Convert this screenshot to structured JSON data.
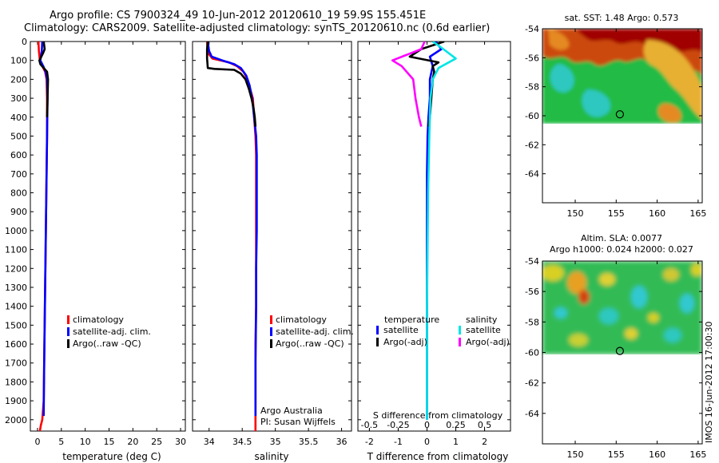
{
  "titles": {
    "line1": "Argo profile: CS 7900324_49 10-Jun-2012 20120610_19 59.9S 155.451E",
    "line2": "Climatology: CARS2009. Satellite-adjusted climatology: synTS_20120610.nc (0.6d earlier)"
  },
  "side_label": "IMOS 16-Jun-2012 17:00:30",
  "credit": {
    "line1": "Argo Australia",
    "line2": "PI: Susan Wijffels"
  },
  "colors": {
    "climatology": "#ff0000",
    "satellite": "#0000ff",
    "argo": "#000000",
    "sal_satellite": "#00e5e5",
    "sal_argo": "#ff00ff",
    "warm": "#aa1100",
    "cool": "#22bb44"
  },
  "chart_data": [
    {
      "id": "temperature",
      "type": "line",
      "xlabel": "temperature (deg C)",
      "ylabel": "",
      "xlim": [
        -1.5,
        31
      ],
      "ylim": [
        2060,
        0
      ],
      "xticks": [
        0,
        5,
        10,
        15,
        20,
        25,
        30
      ],
      "xtick_labels": [
        "0",
        "5",
        "10",
        "15",
        "20",
        "25",
        "30"
      ],
      "yticks": [
        0,
        100,
        200,
        300,
        400,
        500,
        600,
        700,
        800,
        900,
        1000,
        1100,
        1200,
        1300,
        1400,
        1500,
        1600,
        1700,
        1800,
        1900,
        2000
      ],
      "ytick_labels": [
        "0",
        "100",
        "200",
        "300",
        "400",
        "500",
        "600",
        "700",
        "800",
        "900",
        "1000",
        "1100",
        "1200",
        "1300",
        "1400",
        "1500",
        "1600",
        "1700",
        "1800",
        "1900",
        "2000"
      ],
      "legend": [
        "climatology",
        "satellite-adj. clim.",
        "Argo(..raw -QC)"
      ],
      "series": [
        {
          "name": "climatology",
          "color": "#ff0000",
          "x": [
            0.2,
            0.3,
            0.5,
            1.0,
            1.6,
            1.9,
            2.0,
            2.0,
            1.9,
            1.8,
            1.7,
            1.6,
            1.5,
            1.4,
            1.3,
            1.0,
            0.7,
            0.5
          ],
          "y": [
            0,
            50,
            100,
            130,
            160,
            200,
            300,
            500,
            700,
            900,
            1100,
            1300,
            1500,
            1700,
            1900,
            2000,
            2030,
            2060
          ]
        },
        {
          "name": "satellite-adj. clim.",
          "color": "#0000ff",
          "x": [
            1.0,
            0.9,
            0.6,
            1.2,
            1.7,
            2.0,
            2.1,
            2.0,
            1.9,
            1.8,
            1.7,
            1.6,
            1.5,
            1.4,
            1.3
          ],
          "y": [
            0,
            50,
            100,
            130,
            160,
            200,
            300,
            500,
            700,
            900,
            1100,
            1300,
            1500,
            1700,
            1980
          ]
        },
        {
          "name": "Argo(..raw -QC)",
          "color": "#000000",
          "x": [
            1.3,
            1.5,
            1.2,
            0.8,
            0.4,
            0.6,
            1.3,
            2.0,
            2.2,
            2.1,
            2.0
          ],
          "y": [
            0,
            40,
            60,
            80,
            100,
            120,
            140,
            160,
            200,
            300,
            400
          ]
        }
      ]
    },
    {
      "id": "salinity",
      "type": "line",
      "xlabel": "salinity",
      "ylabel": "",
      "xlim": [
        33.75,
        36.15
      ],
      "ylim": [
        2060,
        0
      ],
      "xticks": [
        34,
        34.5,
        35,
        35.5,
        36
      ],
      "xtick_labels": [
        "34",
        "34.5",
        "35",
        "35.5",
        "36"
      ],
      "legend": [
        "climatology",
        "satellite-adj. clim.",
        "Argo(..raw -QC)"
      ],
      "series": [
        {
          "name": "climatology",
          "color": "#ff0000",
          "x": [
            33.97,
            33.98,
            34.05,
            34.3,
            34.42,
            34.52,
            34.58,
            34.62,
            34.66,
            34.68,
            34.7,
            34.71,
            34.71,
            34.71,
            34.71,
            34.71,
            34.7,
            34.7,
            34.7
          ],
          "y": [
            0,
            60,
            90,
            110,
            130,
            160,
            200,
            250,
            300,
            400,
            500,
            600,
            800,
            1000,
            1200,
            1400,
            1600,
            1800,
            2060
          ]
        },
        {
          "name": "satellite-adj. clim.",
          "color": "#0000ff",
          "x": [
            33.98,
            34.0,
            34.04,
            34.2,
            34.38,
            34.48,
            34.56,
            34.61,
            34.65,
            34.68,
            34.71,
            34.72,
            34.72,
            34.72,
            34.71,
            34.71,
            34.7,
            34.7
          ],
          "y": [
            0,
            50,
            80,
            100,
            120,
            140,
            180,
            230,
            300,
            400,
            500,
            600,
            800,
            1000,
            1200,
            1400,
            1700,
            1980
          ]
        },
        {
          "name": "Argo(..raw -QC)",
          "color": "#000000",
          "x": [
            33.98,
            33.97,
            33.97,
            33.98,
            34.08,
            34.38,
            34.48,
            34.55,
            34.6,
            34.64,
            34.67,
            34.69,
            34.7
          ],
          "y": [
            0,
            40,
            90,
            140,
            145,
            150,
            170,
            200,
            250,
            300,
            350,
            400,
            450
          ]
        }
      ]
    },
    {
      "id": "differences",
      "type": "line",
      "xlabel": "T difference from climatology",
      "top_label": "S difference from climatology",
      "xlim": [
        -2.4,
        2.9
      ],
      "ylim": [
        2060,
        0
      ],
      "xticks": [
        -2,
        -1,
        0,
        1,
        2
      ],
      "xtick_labels": [
        "-2",
        "-1",
        "0",
        "1",
        "2"
      ],
      "sticks": [
        -0.5,
        -0.25,
        0,
        0.25,
        0.5
      ],
      "stick_labels": [
        "-0.5",
        "-0.25",
        "0",
        "0.25",
        "0.5"
      ],
      "s_scale": 4,
      "legend_headers": [
        "temperature",
        "salinity"
      ],
      "legend": [
        "satellite",
        "Argo(-adj)",
        "satellite",
        "Argo(-adj)"
      ],
      "series": [
        {
          "name": "T satellite",
          "color": "#0000ff",
          "x": [
            0.3,
            0.5,
            0.1,
            0.2,
            0.1,
            0.1,
            0.05,
            0.02,
            0.0,
            0.0,
            0.0
          ],
          "y": [
            0,
            40,
            80,
            130,
            200,
            300,
            400,
            500,
            700,
            1200,
            2000
          ]
        },
        {
          "name": "T Argo(-adj)",
          "color": "#000000",
          "x": [
            0.6,
            -0.2,
            -0.6,
            0.4,
            0.2,
            0.25,
            0.2,
            0.15,
            0.1,
            0.05
          ],
          "y": [
            0,
            40,
            80,
            110,
            130,
            160,
            200,
            300,
            400,
            450
          ]
        },
        {
          "name": "S satellite",
          "color": "#00e5e5",
          "x": [
            0.05,
            0.12,
            0.25,
            0.1,
            0.05,
            0.03,
            0.02,
            0.01,
            0.0,
            0.0
          ],
          "y": [
            0,
            30,
            90,
            140,
            200,
            300,
            500,
            800,
            1400,
            2000
          ]
        },
        {
          "name": "S Argo(-adj)",
          "color": "#ff00ff",
          "x": [
            -0.02,
            -0.05,
            -0.3,
            -0.22,
            -0.12,
            -0.1,
            -0.07,
            -0.05
          ],
          "y": [
            0,
            40,
            100,
            130,
            200,
            300,
            400,
            450
          ]
        }
      ]
    },
    {
      "id": "sst_map",
      "type": "heatmap",
      "title": "sat. SST: 1.48 Argo: 0.573",
      "xlim": [
        146,
        165.5
      ],
      "ylim": [
        -66,
        -54
      ],
      "xticks": [
        150,
        155,
        160,
        165
      ],
      "xtick_labels": [
        "150",
        "155",
        "160",
        "165"
      ],
      "yticks": [
        -54,
        -56,
        -58,
        -60,
        -62,
        -64
      ],
      "ytick_labels": [
        "-54",
        "-56",
        "-58",
        "-60",
        "-62",
        "-64"
      ],
      "data_limit_lat": -60,
      "marker": {
        "lon": 155.45,
        "lat": -59.9
      }
    },
    {
      "id": "sla_map",
      "type": "heatmap",
      "title_line1": "Altim. SLA: 0.0077",
      "title_line2": "Argo h1000: 0.024 h2000: 0.027",
      "xlim": [
        146,
        165.5
      ],
      "ylim": [
        -66,
        -54
      ],
      "xticks": [
        150,
        155,
        160,
        165
      ],
      "xtick_labels": [
        "150",
        "155",
        "160",
        "165"
      ],
      "yticks": [
        -54,
        -56,
        -58,
        -60,
        -62,
        -64
      ],
      "ytick_labels": [
        "-54",
        "-56",
        "-58",
        "-60",
        "-62",
        "-64"
      ],
      "data_limit_lat": -60,
      "marker": {
        "lon": 155.45,
        "lat": -59.9
      }
    }
  ]
}
